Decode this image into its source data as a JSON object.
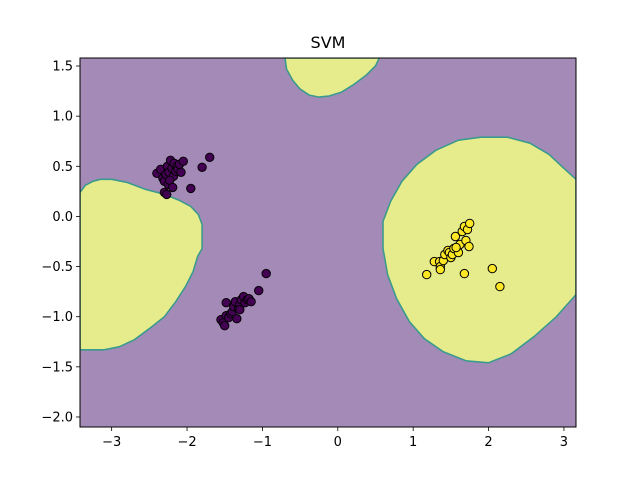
{
  "chart_data": {
    "type": "scatter",
    "title": "SVM",
    "xlabel": "",
    "ylabel": "",
    "xlim": [
      -3.42,
      3.16
    ],
    "ylim": [
      -2.1,
      1.58
    ],
    "x_ticks": [
      -3,
      -2,
      -1,
      0,
      1,
      2,
      3
    ],
    "x_tick_labels": [
      "−3",
      "−2",
      "−1",
      "0",
      "1",
      "2",
      "3"
    ],
    "y_ticks": [
      -2.0,
      -1.5,
      -1.0,
      -0.5,
      0.0,
      0.5,
      1.0,
      1.5
    ],
    "y_tick_labels": [
      "−2.0",
      "−1.5",
      "−1.0",
      "−0.5",
      "0.0",
      "0.5",
      "1.0",
      "1.5"
    ],
    "grid": false,
    "background_region_color": "#a48bb7",
    "positive_region_color": "#e6ec8b",
    "boundary_color": "#3b9a8e",
    "decision_regions": [
      [
        [
          -3.42,
          0.24
        ],
        [
          -3.35,
          0.31
        ],
        [
          -3.25,
          0.35
        ],
        [
          -3.15,
          0.37
        ],
        [
          -3.0,
          0.37
        ],
        [
          -2.8,
          0.34
        ],
        [
          -2.55,
          0.27
        ],
        [
          -2.3,
          0.22
        ],
        [
          -2.1,
          0.16
        ],
        [
          -1.95,
          0.1
        ],
        [
          -1.85,
          0.02
        ],
        [
          -1.8,
          -0.08
        ],
        [
          -1.8,
          -0.32
        ],
        [
          -1.86,
          -0.4
        ],
        [
          -1.92,
          -0.55
        ],
        [
          -2.02,
          -0.7
        ],
        [
          -2.15,
          -0.85
        ],
        [
          -2.3,
          -1.0
        ],
        [
          -2.5,
          -1.12
        ],
        [
          -2.7,
          -1.23
        ],
        [
          -2.9,
          -1.3
        ],
        [
          -3.1,
          -1.33
        ],
        [
          -3.42,
          -1.33
        ]
      ],
      [
        [
          -0.7,
          1.58
        ],
        [
          -0.68,
          1.47
        ],
        [
          -0.6,
          1.36
        ],
        [
          -0.5,
          1.27
        ],
        [
          -0.38,
          1.21
        ],
        [
          -0.25,
          1.19
        ],
        [
          -0.12,
          1.2
        ],
        [
          0.05,
          1.24
        ],
        [
          0.2,
          1.31
        ],
        [
          0.38,
          1.41
        ],
        [
          0.5,
          1.5
        ],
        [
          0.55,
          1.58
        ]
      ],
      [
        [
          0.6,
          -0.05
        ],
        [
          0.7,
          0.15
        ],
        [
          0.85,
          0.35
        ],
        [
          1.05,
          0.52
        ],
        [
          1.3,
          0.66
        ],
        [
          1.6,
          0.76
        ],
        [
          1.9,
          0.79
        ],
        [
          2.25,
          0.79
        ],
        [
          2.55,
          0.73
        ],
        [
          2.8,
          0.62
        ],
        [
          3.0,
          0.48
        ],
        [
          3.16,
          0.37
        ],
        [
          3.16,
          -0.78
        ],
        [
          2.9,
          -1.0
        ],
        [
          2.6,
          -1.2
        ],
        [
          2.3,
          -1.37
        ],
        [
          2.0,
          -1.46
        ],
        [
          1.7,
          -1.44
        ],
        [
          1.4,
          -1.35
        ],
        [
          1.15,
          -1.22
        ],
        [
          0.95,
          -1.05
        ],
        [
          0.78,
          -0.82
        ],
        [
          0.66,
          -0.58
        ],
        [
          0.6,
          -0.32
        ]
      ]
    ],
    "series": [
      {
        "color": "#440154",
        "points": [
          [
            -2.4,
            0.43
          ],
          [
            -2.35,
            0.47
          ],
          [
            -2.32,
            0.38
          ],
          [
            -2.3,
            0.35
          ],
          [
            -2.28,
            0.42
          ],
          [
            -2.26,
            0.5
          ],
          [
            -2.25,
            0.32
          ],
          [
            -2.24,
            0.44
          ],
          [
            -2.22,
            0.56
          ],
          [
            -2.2,
            0.48
          ],
          [
            -2.18,
            0.4
          ],
          [
            -2.17,
            0.53
          ],
          [
            -2.15,
            0.45
          ],
          [
            -2.13,
            0.5
          ],
          [
            -2.12,
            0.47
          ],
          [
            -2.1,
            0.52
          ],
          [
            -2.08,
            0.44
          ],
          [
            -2.3,
            0.24
          ],
          [
            -2.27,
            0.22
          ],
          [
            -2.05,
            0.55
          ],
          [
            -1.95,
            0.28
          ],
          [
            -1.8,
            0.49
          ],
          [
            -1.7,
            0.59
          ],
          [
            -2.23,
            0.36
          ],
          [
            -2.19,
            0.29
          ],
          [
            -1.55,
            -1.03
          ],
          [
            -1.52,
            -1.06
          ],
          [
            -1.5,
            -1.09
          ],
          [
            -1.48,
            -0.99
          ],
          [
            -1.45,
            -1.01
          ],
          [
            -1.42,
            -0.97
          ],
          [
            -1.4,
            -0.95
          ],
          [
            -1.38,
            -0.9
          ],
          [
            -1.36,
            -0.85
          ],
          [
            -1.34,
            -1.02
          ],
          [
            -1.32,
            -0.92
          ],
          [
            -1.3,
            -0.88
          ],
          [
            -1.28,
            -0.83
          ],
          [
            -1.25,
            -0.8
          ],
          [
            -1.23,
            -0.86
          ],
          [
            -1.2,
            -0.83
          ],
          [
            -1.18,
            -0.82
          ],
          [
            -1.15,
            -0.85
          ],
          [
            -1.48,
            -0.86
          ],
          [
            -1.3,
            -0.93
          ],
          [
            -1.05,
            -0.74
          ],
          [
            -0.95,
            -0.57
          ]
        ]
      },
      {
        "color": "#fde725",
        "points": [
          [
            1.18,
            -0.58
          ],
          [
            1.28,
            -0.45
          ],
          [
            1.35,
            -0.45
          ],
          [
            1.36,
            -0.5
          ],
          [
            1.36,
            -0.53
          ],
          [
            1.4,
            -0.44
          ],
          [
            1.42,
            -0.38
          ],
          [
            1.46,
            -0.34
          ],
          [
            1.48,
            -0.36
          ],
          [
            1.5,
            -0.41
          ],
          [
            1.52,
            -0.38
          ],
          [
            1.54,
            -0.32
          ],
          [
            1.56,
            -0.2
          ],
          [
            1.6,
            -0.36
          ],
          [
            1.62,
            -0.28
          ],
          [
            1.65,
            -0.15
          ],
          [
            1.68,
            -0.1
          ],
          [
            1.7,
            -0.24
          ],
          [
            1.72,
            -0.13
          ],
          [
            1.74,
            -0.3
          ],
          [
            1.75,
            -0.07
          ],
          [
            1.68,
            -0.57
          ],
          [
            2.05,
            -0.52
          ],
          [
            2.15,
            -0.7
          ],
          [
            1.57,
            -0.31
          ]
        ]
      }
    ]
  }
}
